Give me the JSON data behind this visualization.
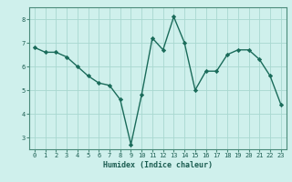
{
  "x": [
    0,
    1,
    2,
    3,
    4,
    5,
    6,
    7,
    8,
    9,
    10,
    11,
    12,
    13,
    14,
    15,
    16,
    17,
    18,
    19,
    20,
    21,
    22,
    23
  ],
  "y": [
    6.8,
    6.6,
    6.6,
    6.4,
    6.0,
    5.6,
    5.3,
    5.2,
    4.6,
    2.7,
    4.8,
    7.2,
    6.7,
    8.1,
    7.0,
    5.0,
    5.8,
    5.8,
    6.5,
    6.7,
    6.7,
    6.3,
    5.6,
    4.4
  ],
  "xlabel": "Humidex (Indice chaleur)",
  "ylim": [
    2.5,
    8.5
  ],
  "xlim": [
    -0.5,
    23.5
  ],
  "yticks": [
    3,
    4,
    5,
    6,
    7,
    8
  ],
  "xticks": [
    0,
    1,
    2,
    3,
    4,
    5,
    6,
    7,
    8,
    9,
    10,
    11,
    12,
    13,
    14,
    15,
    16,
    17,
    18,
    19,
    20,
    21,
    22,
    23
  ],
  "line_color": "#1a6b5a",
  "marker_color": "#1a6b5a",
  "bg_color": "#cff0ec",
  "grid_color": "#a8d8d0",
  "tick_color": "#1a5c50",
  "label_color": "#1a5c50",
  "axis_color": "#4a8a7a"
}
